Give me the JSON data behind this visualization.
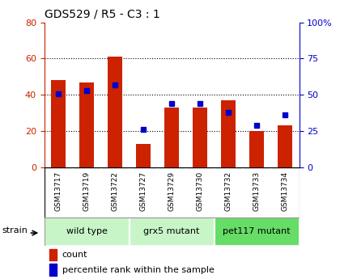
{
  "title": "GDS529 / R5 - C3 : 1",
  "categories": [
    "GSM13717",
    "GSM13719",
    "GSM13722",
    "GSM13727",
    "GSM13729",
    "GSM13730",
    "GSM13732",
    "GSM13733",
    "GSM13734"
  ],
  "counts": [
    48,
    47,
    61,
    13,
    33,
    33,
    37,
    20,
    23
  ],
  "percentile_ranks": [
    51,
    53,
    57,
    26,
    44,
    44,
    38,
    29,
    36
  ],
  "groups": [
    {
      "label": "wild type",
      "start": 0,
      "end": 3,
      "color": "#c8f5c8"
    },
    {
      "label": "grx5 mutant",
      "start": 3,
      "end": 6,
      "color": "#c8f5c8"
    },
    {
      "label": "pet117 mutant",
      "start": 6,
      "end": 9,
      "color": "#66dd66"
    }
  ],
  "left_ylim": [
    0,
    80
  ],
  "right_ylim": [
    0,
    100
  ],
  "left_yticks": [
    0,
    20,
    40,
    60,
    80
  ],
  "right_yticks": [
    0,
    25,
    50,
    75,
    100
  ],
  "right_yticklabels": [
    "0",
    "25",
    "50",
    "75",
    "100%"
  ],
  "bar_color": "#cc2200",
  "dot_color": "#0000cc",
  "bg_color": "#ffffff",
  "xtick_bg": "#c8c8c8",
  "strain_label": "strain",
  "legend_items": [
    "count",
    "percentile rank within the sample"
  ]
}
